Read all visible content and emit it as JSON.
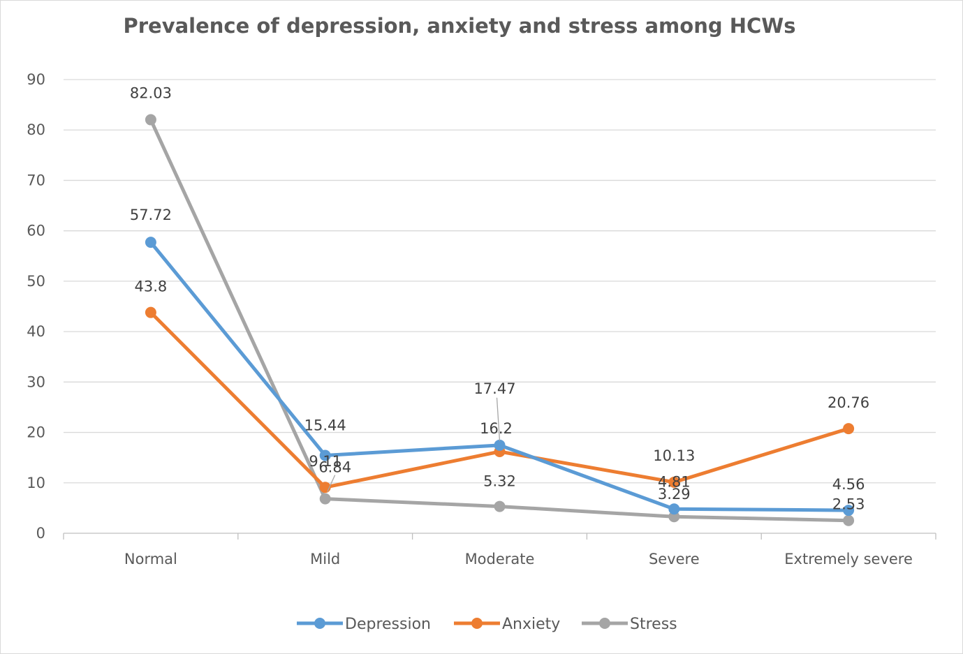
{
  "chart_data": {
    "type": "line",
    "title": "Prevalence of depression, anxiety and stress among HCWs",
    "xlabel": "",
    "ylabel": "",
    "categories": [
      "Normal",
      "Mild",
      "Moderate",
      "Severe",
      "Extremely severe"
    ],
    "ylim": [
      0,
      90
    ],
    "yticks": [
      "0",
      "10",
      "20",
      "30",
      "40",
      "50",
      "60",
      "70",
      "80",
      "90"
    ],
    "grid": true,
    "legend": "bottom",
    "series": [
      {
        "name": "Depression",
        "color": "#5b9bd5",
        "values": [
          57.72,
          15.44,
          17.47,
          4.81,
          4.56
        ],
        "labels": [
          "57.72",
          "15.44",
          "17.47",
          "4.81",
          "4.56"
        ]
      },
      {
        "name": "Anxiety",
        "color": "#ed7d31",
        "values": [
          43.8,
          9.11,
          16.2,
          10.13,
          20.76
        ],
        "labels": [
          "43.8",
          "9.11",
          "16.2",
          "10.13",
          "20.76"
        ]
      },
      {
        "name": "Stress",
        "color": "#a5a5a5",
        "values": [
          82.03,
          6.84,
          5.32,
          3.29,
          2.53
        ],
        "labels": [
          "82.03",
          "6.84",
          "5.32",
          "3.29",
          "2.53"
        ]
      }
    ]
  }
}
